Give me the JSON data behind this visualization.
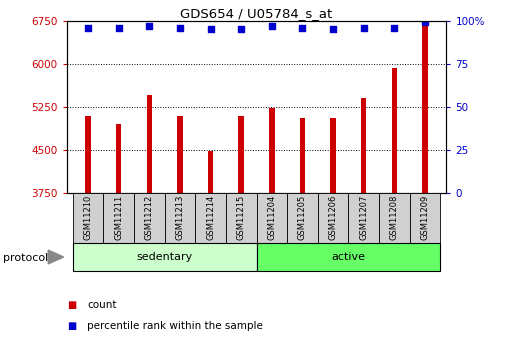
{
  "title": "GDS654 / U05784_s_at",
  "samples": [
    "GSM11210",
    "GSM11211",
    "GSM11212",
    "GSM11213",
    "GSM11214",
    "GSM11215",
    "GSM11204",
    "GSM11205",
    "GSM11206",
    "GSM11207",
    "GSM11208",
    "GSM11209"
  ],
  "counts": [
    5100,
    4950,
    5450,
    5100,
    4480,
    5100,
    5230,
    5050,
    5050,
    5400,
    5930,
    6680
  ],
  "percentile_ranks": [
    96,
    96,
    97,
    96,
    95,
    95,
    97,
    96,
    95,
    96,
    96,
    99
  ],
  "groups": [
    {
      "label": "sedentary",
      "start": 0,
      "end": 6
    },
    {
      "label": "active",
      "start": 6,
      "end": 12
    }
  ],
  "protocol_label": "protocol",
  "ylim_left": [
    3750,
    6750
  ],
  "yticks_left": [
    3750,
    4500,
    5250,
    6000,
    6750
  ],
  "ylim_right": [
    0,
    100
  ],
  "yticks_right": [
    0,
    25,
    50,
    75,
    100
  ],
  "bar_color": "#cc0000",
  "dot_color": "#0000cc",
  "bg_color": "#ffffff",
  "left_tick_color": "#cc0000",
  "right_tick_color": "#0000cc",
  "legend_items": [
    {
      "label": "count",
      "color": "#cc0000"
    },
    {
      "label": "percentile rank within the sample",
      "color": "#0000cc"
    }
  ],
  "sedentary_color": "#ccffcc",
  "active_color": "#66ff66",
  "label_cell_color": "#d0d0d0"
}
